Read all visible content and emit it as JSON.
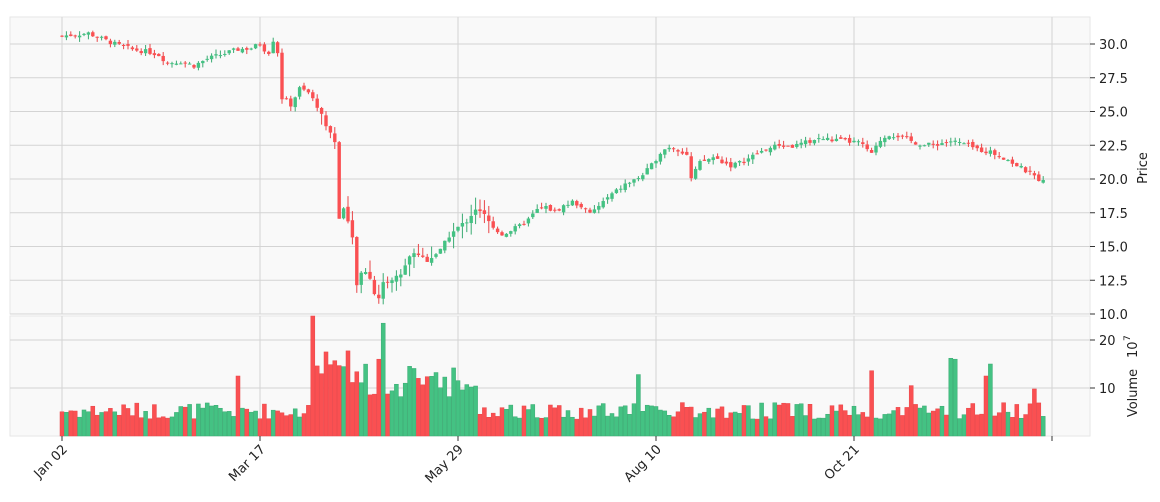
{
  "chart_data": {
    "type": "candlestick",
    "title": "",
    "colors": {
      "up": "#44c283",
      "down": "#fa5052",
      "up_wick": "#3aaa72",
      "down_wick": "#e84548"
    },
    "grid": true,
    "price_axis": {
      "label": "Price",
      "side": "right",
      "ylim": [
        10,
        32
      ],
      "ticks": [
        10.0,
        12.5,
        15.0,
        17.5,
        20.0,
        22.5,
        25.0,
        27.5,
        30.0
      ],
      "tick_labels": [
        "10.0",
        "12.5",
        "15.0",
        "17.5",
        "20.0",
        "22.5",
        "25.0",
        "27.5",
        "30.0"
      ]
    },
    "volume_axis": {
      "label": "Volume",
      "exponent_label": "10",
      "exponent_power": "7",
      "ylim": [
        0,
        25
      ],
      "ticks": [
        10,
        20
      ],
      "tick_labels": [
        "10",
        "20"
      ]
    },
    "x_axis": {
      "num_points": 224,
      "ticks": [
        0,
        45,
        90,
        135,
        180,
        225
      ],
      "tick_labels": [
        "Jan 02",
        "Mar 17",
        "May 29",
        "Aug 10",
        "Oct 21",
        ""
      ]
    },
    "close_path": [
      [
        0,
        30.6
      ],
      [
        6,
        30.8
      ],
      [
        12,
        30.0
      ],
      [
        16,
        29.6
      ],
      [
        20,
        29.4
      ],
      [
        22,
        29.2
      ],
      [
        24,
        28.6
      ],
      [
        27,
        28.7
      ],
      [
        30,
        28.4
      ],
      [
        33,
        28.9
      ],
      [
        36,
        29.2
      ],
      [
        40,
        29.6
      ],
      [
        43,
        29.7
      ],
      [
        45,
        30.0
      ],
      [
        46,
        29.6
      ],
      [
        47,
        29.4
      ],
      [
        48,
        30.3
      ],
      [
        49,
        29.4
      ],
      [
        50,
        26.0
      ],
      [
        52,
        25.5
      ],
      [
        54,
        26.7
      ],
      [
        56,
        26.4
      ],
      [
        58,
        25.4
      ],
      [
        60,
        24.0
      ],
      [
        62,
        22.8
      ],
      [
        63,
        17.0
      ],
      [
        64,
        18.0
      ],
      [
        65,
        16.8
      ],
      [
        66,
        15.5
      ],
      [
        67,
        12.2
      ],
      [
        68,
        12.9
      ],
      [
        69,
        13.2
      ],
      [
        70,
        12.6
      ],
      [
        71,
        11.6
      ],
      [
        72,
        11.2
      ],
      [
        73,
        12.3
      ],
      [
        75,
        12.5
      ],
      [
        77,
        13.0
      ],
      [
        79,
        14.2
      ],
      [
        80,
        14.6
      ],
      [
        83,
        14.0
      ],
      [
        86,
        14.7
      ],
      [
        88,
        15.8
      ],
      [
        90,
        16.4
      ],
      [
        92,
        16.9
      ],
      [
        94,
        17.8
      ],
      [
        96,
        17.3
      ],
      [
        98,
        16.4
      ],
      [
        100,
        15.9
      ],
      [
        102,
        16.2
      ],
      [
        104,
        16.5
      ],
      [
        106,
        17.0
      ],
      [
        108,
        17.7
      ],
      [
        110,
        17.9
      ],
      [
        112,
        17.6
      ],
      [
        114,
        18.0
      ],
      [
        116,
        18.3
      ],
      [
        118,
        18.0
      ],
      [
        120,
        17.4
      ],
      [
        122,
        18.0
      ],
      [
        124,
        18.6
      ],
      [
        126,
        19.1
      ],
      [
        128,
        19.6
      ],
      [
        130,
        19.9
      ],
      [
        132,
        20.3
      ],
      [
        134,
        21.0
      ],
      [
        136,
        22.0
      ],
      [
        138,
        22.4
      ],
      [
        140,
        22.2
      ],
      [
        142,
        21.8
      ],
      [
        143,
        20.0
      ],
      [
        145,
        21.2
      ],
      [
        148,
        21.6
      ],
      [
        150,
        21.3
      ],
      [
        152,
        21.0
      ],
      [
        154,
        21.2
      ],
      [
        156,
        21.5
      ],
      [
        158,
        21.9
      ],
      [
        160,
        22.2
      ],
      [
        163,
        22.5
      ],
      [
        166,
        22.4
      ],
      [
        169,
        22.7
      ],
      [
        172,
        23.0
      ],
      [
        175,
        22.9
      ],
      [
        178,
        22.8
      ],
      [
        181,
        22.7
      ],
      [
        183,
        22.2
      ],
      [
        184,
        21.8
      ],
      [
        186,
        22.9
      ],
      [
        188,
        23.3
      ],
      [
        190,
        23.2
      ],
      [
        193,
        22.8
      ],
      [
        196,
        22.5
      ],
      [
        199,
        22.6
      ],
      [
        202,
        22.8
      ],
      [
        205,
        22.6
      ],
      [
        208,
        22.2
      ],
      [
        211,
        22.0
      ],
      [
        214,
        21.6
      ],
      [
        217,
        21.0
      ],
      [
        219,
        20.6
      ],
      [
        222,
        20.0
      ],
      [
        224,
        19.6
      ]
    ]
  }
}
